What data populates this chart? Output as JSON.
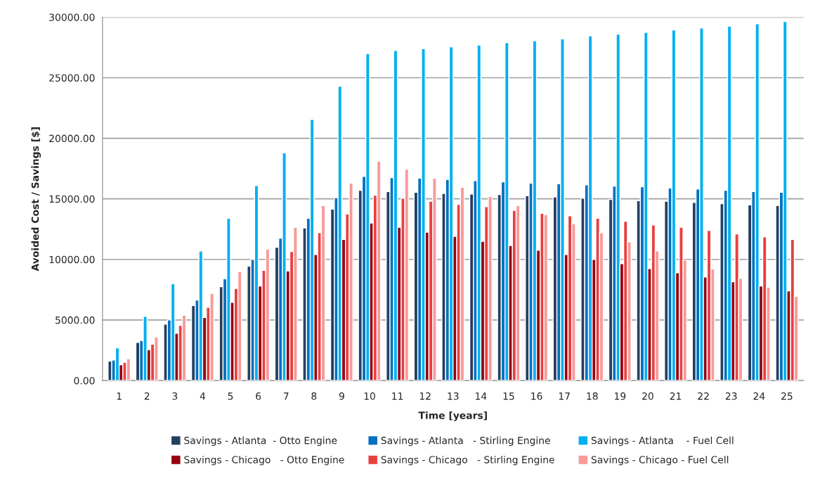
{
  "chart_data": {
    "type": "bar",
    "xlabel": "Time [years]",
    "ylabel": "Avoided Cost / Savings [$]",
    "categories": [
      "1",
      "2",
      "3",
      "4",
      "5",
      "6",
      "7",
      "8",
      "9",
      "10",
      "11",
      "12",
      "13",
      "14",
      "15",
      "16",
      "17",
      "18",
      "19",
      "20",
      "21",
      "22",
      "23",
      "24",
      "25"
    ],
    "series": [
      {
        "name": "Savings - Atlanta  - Otto Engine",
        "color": "#243f60",
        "values": [
          1600,
          3150,
          4650,
          6200,
          7750,
          9450,
          11000,
          12600,
          14150,
          15700,
          15600,
          15550,
          15450,
          15400,
          15350,
          15250,
          15150,
          15050,
          14950,
          14850,
          14800,
          14700,
          14600,
          14500,
          14450
        ]
      },
      {
        "name": "Savings - Atlanta   - Stirling Engine",
        "color": "#0070c0",
        "values": [
          1700,
          3300,
          5000,
          6650,
          8400,
          10000,
          11750,
          13400,
          15100,
          16850,
          16750,
          16700,
          16600,
          16500,
          16400,
          16300,
          16250,
          16150,
          16050,
          16000,
          15900,
          15800,
          15700,
          15600,
          15550
        ]
      },
      {
        "name": "Savings - Atlanta    - Fuel Cell",
        "color": "#00b0f0",
        "values": [
          2700,
          5300,
          8000,
          10700,
          13400,
          16100,
          18800,
          21550,
          24300,
          27000,
          27250,
          27400,
          27550,
          27700,
          27900,
          28050,
          28200,
          28450,
          28600,
          28750,
          28950,
          29100,
          29250,
          29450,
          29650
        ]
      },
      {
        "name": "Savings - Chicago   - Otto Engine",
        "color": "#960010",
        "values": [
          1300,
          2550,
          3900,
          5200,
          6450,
          7800,
          9050,
          10400,
          11650,
          13000,
          12650,
          12250,
          11900,
          11500,
          11150,
          10750,
          10400,
          10000,
          9650,
          9250,
          8900,
          8550,
          8150,
          7800,
          7400
        ]
      },
      {
        "name": "Savings - Chicago   - Stirling Engine",
        "color": "#e84040",
        "values": [
          1500,
          3000,
          4550,
          6050,
          7600,
          9100,
          10650,
          12200,
          13750,
          15300,
          15050,
          14800,
          14550,
          14350,
          14050,
          13800,
          13600,
          13400,
          13150,
          12850,
          12650,
          12400,
          12100,
          11850,
          11650
        ]
      },
      {
        "name": "Savings - Chicago - Fuel Cell",
        "color": "#f89a9a",
        "values": [
          1800,
          3600,
          5400,
          7200,
          9000,
          10850,
          12650,
          14450,
          16300,
          18100,
          17450,
          16700,
          15950,
          15200,
          14450,
          13700,
          12950,
          12200,
          11450,
          10700,
          9950,
          9200,
          8450,
          7700,
          6950
        ]
      }
    ],
    "ylim": [
      0,
      30000
    ],
    "yticks": [
      {
        "value": 0,
        "label": "0.00"
      },
      {
        "value": 5000,
        "label": "5000.00"
      },
      {
        "value": 10000,
        "label": "10000.00"
      },
      {
        "value": 15000,
        "label": "15000.00"
      },
      {
        "value": 20000,
        "label": "20000.00"
      },
      {
        "value": 25000,
        "label": "25000.00"
      },
      {
        "value": 30000,
        "label": "30000.00"
      }
    ],
    "grid": "y",
    "legend": "bottom"
  }
}
